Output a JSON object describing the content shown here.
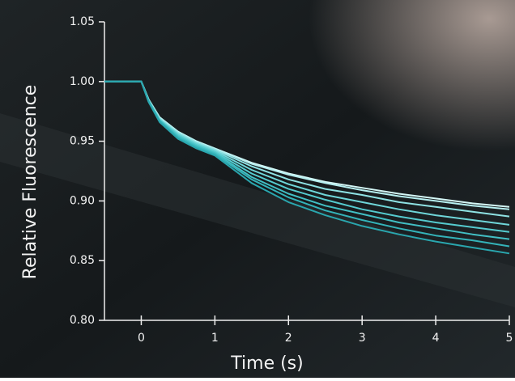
{
  "chart_data": {
    "type": "line",
    "x_label": "Time (s)",
    "y_label": "Relative Fluorescence",
    "x": [
      -0.5,
      -0.25,
      0,
      0.1,
      0.25,
      0.5,
      0.75,
      1,
      1.5,
      2,
      2.5,
      3,
      3.5,
      4,
      4.5,
      5
    ],
    "xlim": [
      -0.5,
      5
    ],
    "xticks": [
      0,
      1,
      2,
      3,
      4,
      5
    ],
    "ylim": [
      0.8,
      1.05
    ],
    "yticks": [
      {
        "value": 0.8,
        "label": "0.80"
      },
      0.85,
      {
        "value": 0.9,
        "label": "0.90"
      },
      0.95,
      {
        "value": 1,
        "label": "1.00"
      },
      1.05
    ],
    "series": [
      {
        "color": "#d4f7f6",
        "values": [
          1,
          1,
          1,
          0.985,
          0.97,
          0.958,
          0.95,
          0.944,
          0.932,
          0.923,
          0.916,
          0.911,
          0.906,
          0.902,
          0.898,
          0.895
        ]
      },
      {
        "color": "#b6eff0",
        "values": [
          1,
          1,
          1,
          0.985,
          0.97,
          0.958,
          0.95,
          0.944,
          0.931,
          0.922,
          0.915,
          0.909,
          0.904,
          0.9,
          0.896,
          0.893
        ]
      },
      {
        "color": "#8fe2e4",
        "values": [
          1,
          1,
          1,
          0.985,
          0.969,
          0.957,
          0.949,
          0.943,
          0.929,
          0.918,
          0.91,
          0.905,
          0.899,
          0.895,
          0.891,
          0.887
        ]
      },
      {
        "color": "#6fd6d9",
        "values": [
          1,
          1,
          1,
          0.984,
          0.968,
          0.956,
          0.948,
          0.942,
          0.926,
          0.914,
          0.905,
          0.899,
          0.893,
          0.888,
          0.884,
          0.88
        ]
      },
      {
        "color": "#55cbcf",
        "values": [
          1,
          1,
          1,
          0.984,
          0.968,
          0.955,
          0.947,
          0.941,
          0.923,
          0.91,
          0.901,
          0.893,
          0.887,
          0.882,
          0.878,
          0.874
        ]
      },
      {
        "color": "#42bfc4",
        "values": [
          1,
          1,
          1,
          0.984,
          0.967,
          0.954,
          0.946,
          0.94,
          0.92,
          0.906,
          0.896,
          0.889,
          0.882,
          0.877,
          0.872,
          0.868
        ]
      },
      {
        "color": "#34b3b9",
        "values": [
          1,
          1,
          1,
          0.983,
          0.967,
          0.953,
          0.945,
          0.939,
          0.918,
          0.903,
          0.892,
          0.884,
          0.877,
          0.871,
          0.867,
          0.862
        ]
      },
      {
        "color": "#2aa6ae",
        "values": [
          1,
          1,
          1,
          0.983,
          0.966,
          0.952,
          0.944,
          0.938,
          0.915,
          0.899,
          0.888,
          0.879,
          0.872,
          0.866,
          0.861,
          0.856
        ]
      }
    ]
  }
}
